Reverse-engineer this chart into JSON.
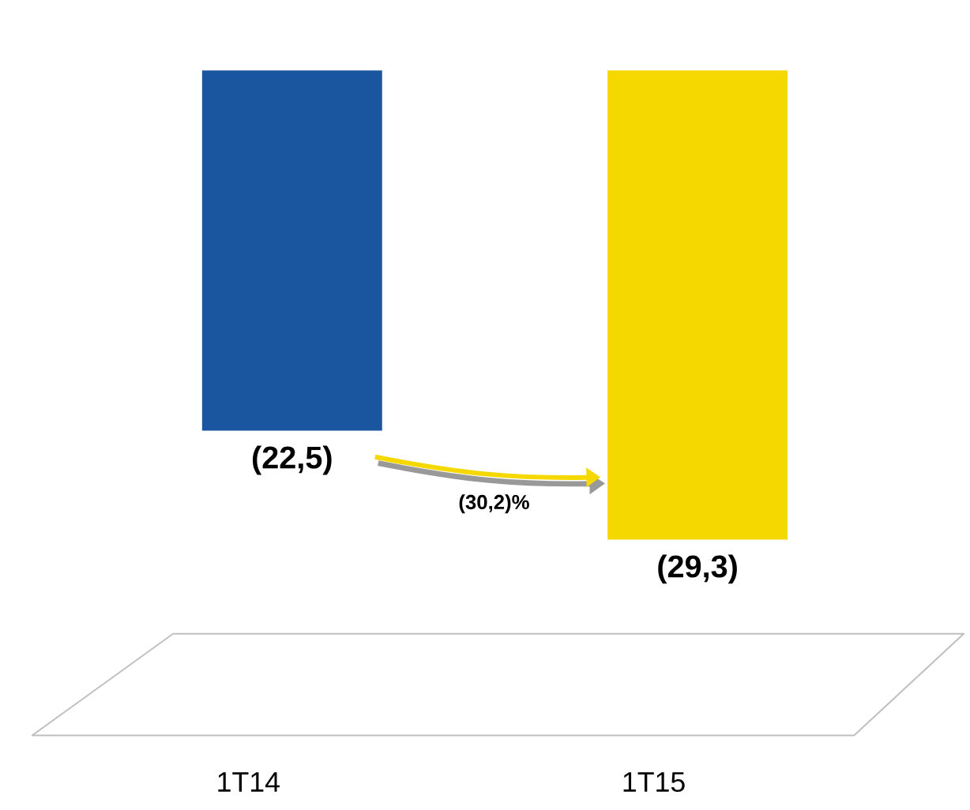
{
  "chart_data": {
    "type": "bar",
    "categories": [
      "1T14",
      "1T15"
    ],
    "values": [
      -22.5,
      -29.3
    ],
    "colors": [
      "#1a56a0",
      "#f5d800"
    ],
    "value_labels": [
      "(22,5)",
      "(29,3)"
    ],
    "annotations": [
      "(30,2)%"
    ]
  }
}
